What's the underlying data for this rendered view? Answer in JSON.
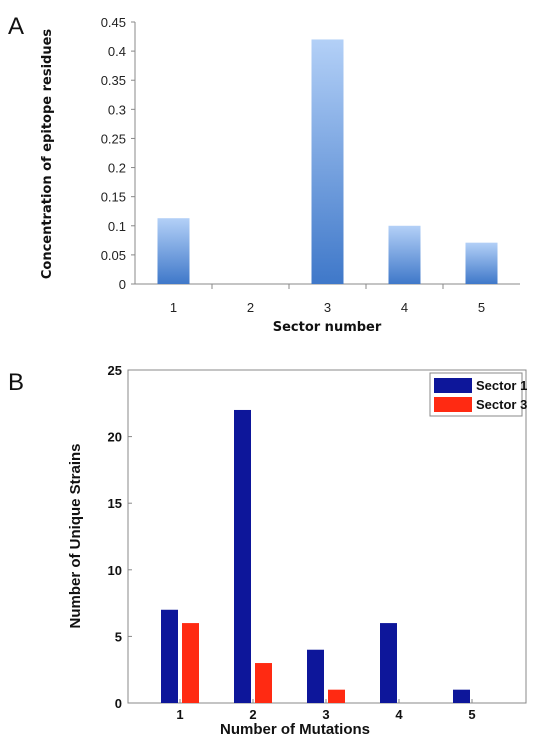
{
  "panels": {
    "a_letter": "A",
    "b_letter": "B"
  },
  "colors": {
    "bar_a_top": "#b3d0f7",
    "bar_a_bottom": "#3f78c9",
    "sector1": "#0d169a",
    "sector3": "#ff2a12",
    "axis": "#888888"
  },
  "chart_data": [
    {
      "type": "bar",
      "panel": "A",
      "categories": [
        "1",
        "2",
        "3",
        "4",
        "5"
      ],
      "values": [
        0.113,
        0.0,
        0.42,
        0.1,
        0.071
      ],
      "xlabel": "Sector number",
      "ylabel": "Concentration of epitope residues",
      "ylim": [
        0,
        0.45
      ],
      "yticks": [
        "0",
        "0.05",
        "0.1",
        "0.15",
        "0.2",
        "0.25",
        "0.3",
        "0.35",
        "0.4",
        "0.45"
      ],
      "grid": false
    },
    {
      "type": "bar",
      "panel": "B",
      "categories": [
        "1",
        "2",
        "3",
        "4",
        "5"
      ],
      "series": [
        {
          "name": "Sector 1",
          "values": [
            7,
            22,
            4,
            6,
            1
          ]
        },
        {
          "name": "Sector 3",
          "values": [
            6,
            3,
            1,
            0,
            0
          ]
        }
      ],
      "xlabel": "Number of Mutations",
      "ylabel": "Number of Unique Strains",
      "ylim": [
        0,
        25
      ],
      "yticks": [
        "0",
        "5",
        "10",
        "15",
        "20",
        "25"
      ],
      "legend": "top-right",
      "grid": false
    }
  ]
}
